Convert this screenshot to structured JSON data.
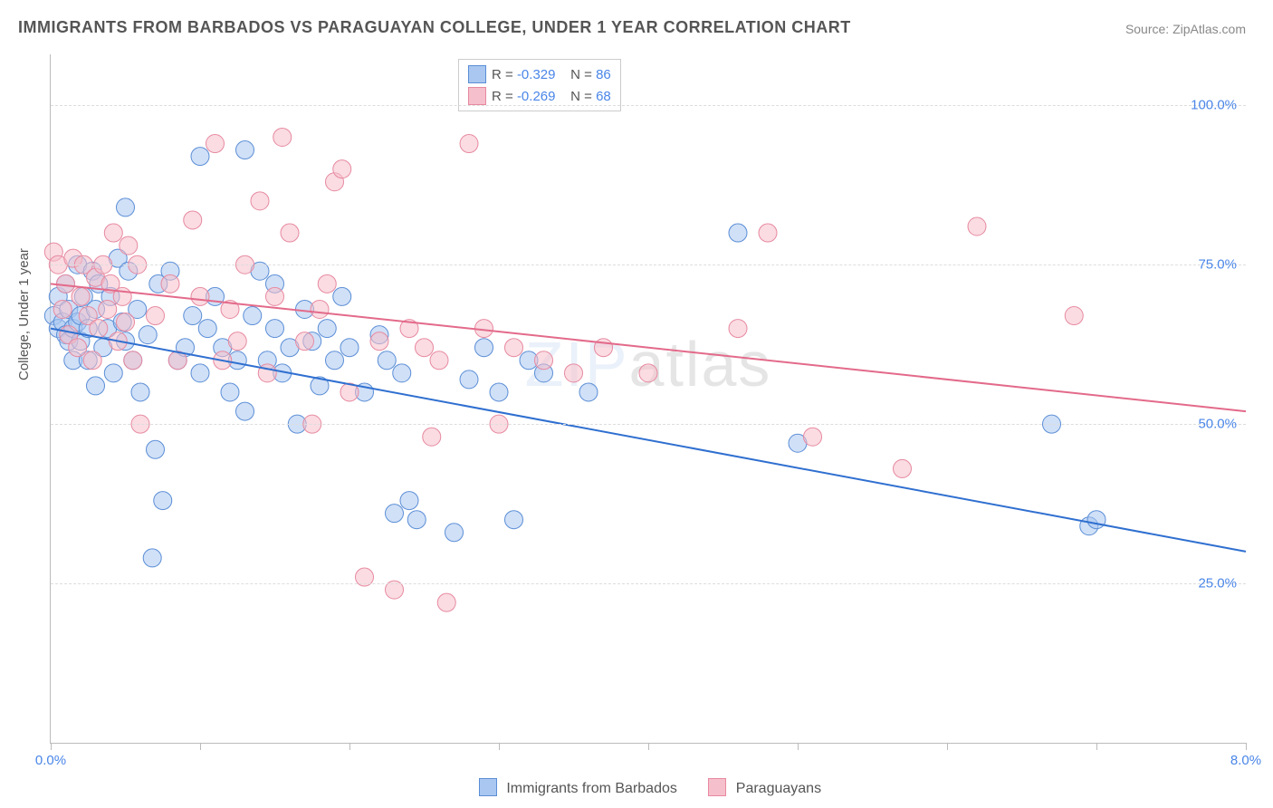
{
  "title": "IMMIGRANTS FROM BARBADOS VS PARAGUAYAN COLLEGE, UNDER 1 YEAR CORRELATION CHART",
  "source_label": "Source:",
  "source_name": "ZipAtlas.com",
  "ylabel": "College, Under 1 year",
  "watermark_a": "ZIP",
  "watermark_b": "atlas",
  "chart": {
    "type": "scatter",
    "background_color": "#ffffff",
    "grid_color": "#dddddd",
    "axis_color": "#bbbbbb",
    "xlim": [
      0,
      8
    ],
    "ylim": [
      0,
      108
    ],
    "xtick_positions": [
      0,
      1,
      2,
      3,
      4,
      5,
      6,
      7,
      8
    ],
    "xtick_labels": {
      "0": "0.0%",
      "8": "8.0%"
    },
    "ytick_positions": [
      25,
      50,
      75,
      100
    ],
    "ytick_labels": {
      "25": "25.0%",
      "50": "50.0%",
      "75": "75.0%",
      "100": "100.0%"
    },
    "tick_label_color": "#4a86e8",
    "marker_radius": 10,
    "marker_opacity": 0.55,
    "line_width": 2,
    "series": [
      {
        "name": "Immigrants from Barbados",
        "color_fill": "#a9c7f0",
        "color_stroke": "#5b8ed6",
        "r_label": "R = ",
        "r_value": "-0.329",
        "n_label": "N = ",
        "n_value": "86",
        "trend": {
          "x1": 0,
          "y1": 65,
          "x2": 8,
          "y2": 30,
          "color": "#2f6fd0"
        },
        "points": [
          [
            0.02,
            67
          ],
          [
            0.05,
            65
          ],
          [
            0.05,
            70
          ],
          [
            0.08,
            66
          ],
          [
            0.1,
            64
          ],
          [
            0.1,
            72
          ],
          [
            0.12,
            63
          ],
          [
            0.12,
            68
          ],
          [
            0.15,
            65
          ],
          [
            0.15,
            60
          ],
          [
            0.18,
            66
          ],
          [
            0.18,
            75
          ],
          [
            0.2,
            63
          ],
          [
            0.2,
            67
          ],
          [
            0.22,
            70
          ],
          [
            0.25,
            60
          ],
          [
            0.25,
            65
          ],
          [
            0.28,
            74
          ],
          [
            0.3,
            56
          ],
          [
            0.3,
            68
          ],
          [
            0.32,
            72
          ],
          [
            0.35,
            62
          ],
          [
            0.38,
            65
          ],
          [
            0.4,
            70
          ],
          [
            0.42,
            58
          ],
          [
            0.45,
            76
          ],
          [
            0.48,
            66
          ],
          [
            0.5,
            84
          ],
          [
            0.5,
            63
          ],
          [
            0.52,
            74
          ],
          [
            0.55,
            60
          ],
          [
            0.58,
            68
          ],
          [
            0.6,
            55
          ],
          [
            0.65,
            64
          ],
          [
            0.68,
            29
          ],
          [
            0.7,
            46
          ],
          [
            0.72,
            72
          ],
          [
            0.75,
            38
          ],
          [
            0.8,
            74
          ],
          [
            0.85,
            60
          ],
          [
            0.9,
            62
          ],
          [
            0.95,
            67
          ],
          [
            1.0,
            92
          ],
          [
            1.0,
            58
          ],
          [
            1.05,
            65
          ],
          [
            1.1,
            70
          ],
          [
            1.15,
            62
          ],
          [
            1.2,
            55
          ],
          [
            1.25,
            60
          ],
          [
            1.3,
            93
          ],
          [
            1.3,
            52
          ],
          [
            1.35,
            67
          ],
          [
            1.4,
            74
          ],
          [
            1.45,
            60
          ],
          [
            1.5,
            72
          ],
          [
            1.5,
            65
          ],
          [
            1.55,
            58
          ],
          [
            1.6,
            62
          ],
          [
            1.65,
            50
          ],
          [
            1.7,
            68
          ],
          [
            1.75,
            63
          ],
          [
            1.8,
            56
          ],
          [
            1.85,
            65
          ],
          [
            1.9,
            60
          ],
          [
            1.95,
            70
          ],
          [
            2.0,
            62
          ],
          [
            2.1,
            55
          ],
          [
            2.2,
            64
          ],
          [
            2.25,
            60
          ],
          [
            2.3,
            36
          ],
          [
            2.35,
            58
          ],
          [
            2.4,
            38
          ],
          [
            2.45,
            35
          ],
          [
            2.7,
            33
          ],
          [
            2.8,
            57
          ],
          [
            2.9,
            62
          ],
          [
            3.0,
            55
          ],
          [
            3.1,
            35
          ],
          [
            3.2,
            60
          ],
          [
            3.3,
            58
          ],
          [
            3.6,
            55
          ],
          [
            4.6,
            80
          ],
          [
            5.0,
            47
          ],
          [
            6.7,
            50
          ],
          [
            6.95,
            34
          ],
          [
            7.0,
            35
          ]
        ]
      },
      {
        "name": "Paraguayans",
        "color_fill": "#f5bfcb",
        "color_stroke": "#e789a0",
        "r_label": "R = ",
        "r_value": "-0.269",
        "n_label": "N = ",
        "n_value": "68",
        "trend": {
          "x1": 0,
          "y1": 72,
          "x2": 8,
          "y2": 52,
          "color": "#e36a8a"
        },
        "points": [
          [
            0.02,
            77
          ],
          [
            0.05,
            75
          ],
          [
            0.08,
            68
          ],
          [
            0.1,
            72
          ],
          [
            0.12,
            64
          ],
          [
            0.15,
            76
          ],
          [
            0.18,
            62
          ],
          [
            0.2,
            70
          ],
          [
            0.22,
            75
          ],
          [
            0.25,
            67
          ],
          [
            0.28,
            60
          ],
          [
            0.3,
            73
          ],
          [
            0.32,
            65
          ],
          [
            0.35,
            75
          ],
          [
            0.38,
            68
          ],
          [
            0.4,
            72
          ],
          [
            0.42,
            80
          ],
          [
            0.45,
            63
          ],
          [
            0.48,
            70
          ],
          [
            0.5,
            66
          ],
          [
            0.52,
            78
          ],
          [
            0.55,
            60
          ],
          [
            0.58,
            75
          ],
          [
            0.6,
            50
          ],
          [
            0.7,
            67
          ],
          [
            0.8,
            72
          ],
          [
            0.85,
            60
          ],
          [
            0.95,
            82
          ],
          [
            1.0,
            70
          ],
          [
            1.1,
            94
          ],
          [
            1.15,
            60
          ],
          [
            1.2,
            68
          ],
          [
            1.25,
            63
          ],
          [
            1.3,
            75
          ],
          [
            1.4,
            85
          ],
          [
            1.45,
            58
          ],
          [
            1.5,
            70
          ],
          [
            1.55,
            95
          ],
          [
            1.6,
            80
          ],
          [
            1.7,
            63
          ],
          [
            1.75,
            50
          ],
          [
            1.8,
            68
          ],
          [
            1.85,
            72
          ],
          [
            1.9,
            88
          ],
          [
            1.95,
            90
          ],
          [
            2.0,
            55
          ],
          [
            2.1,
            26
          ],
          [
            2.2,
            63
          ],
          [
            2.3,
            24
          ],
          [
            2.4,
            65
          ],
          [
            2.5,
            62
          ],
          [
            2.55,
            48
          ],
          [
            2.6,
            60
          ],
          [
            2.65,
            22
          ],
          [
            2.8,
            94
          ],
          [
            2.9,
            65
          ],
          [
            3.0,
            50
          ],
          [
            3.1,
            62
          ],
          [
            3.3,
            60
          ],
          [
            3.5,
            58
          ],
          [
            3.7,
            62
          ],
          [
            4.0,
            58
          ],
          [
            4.6,
            65
          ],
          [
            4.8,
            80
          ],
          [
            5.1,
            48
          ],
          [
            5.7,
            43
          ],
          [
            6.2,
            81
          ],
          [
            6.85,
            67
          ]
        ]
      }
    ]
  },
  "legend_bottom": {
    "items": [
      {
        "label": "Immigrants from Barbados",
        "fill": "#a9c7f0",
        "stroke": "#5b8ed6"
      },
      {
        "label": "Paraguayans",
        "fill": "#f5bfcb",
        "stroke": "#e789a0"
      }
    ]
  }
}
